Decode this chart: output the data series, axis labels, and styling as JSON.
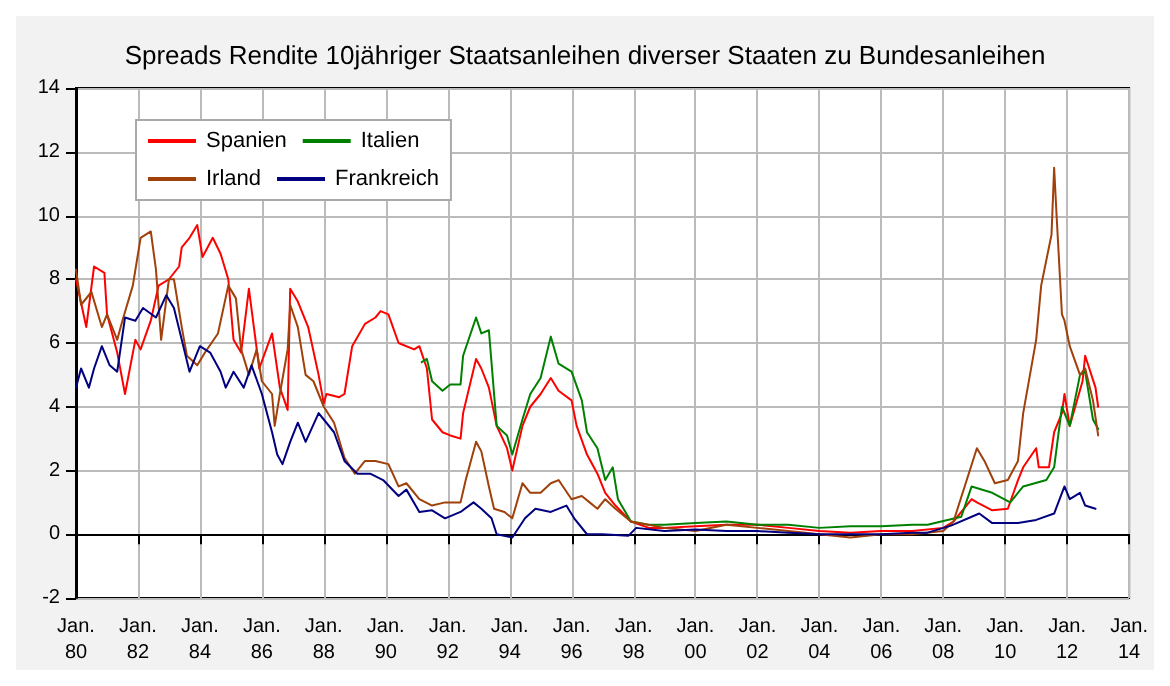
{
  "chart_data": {
    "type": "line",
    "title": "Spreads Rendite 10jähriger Staatsanleihen diverser Staaten zu Bundesanleihen",
    "xlim": [
      "1980-01",
      "2014-01"
    ],
    "ylim": [
      -2,
      14
    ],
    "xticks": [
      {
        "value": "1980-01",
        "label": "Jan.\n80"
      },
      {
        "value": "1982-01",
        "label": "Jan.\n82"
      },
      {
        "value": "1984-01",
        "label": "Jan.\n84"
      },
      {
        "value": "1986-01",
        "label": "Jan.\n86"
      },
      {
        "value": "1988-01",
        "label": "Jan.\n88"
      },
      {
        "value": "1990-01",
        "label": "Jan.\n90"
      },
      {
        "value": "1992-01",
        "label": "Jan.\n92"
      },
      {
        "value": "1994-01",
        "label": "Jan.\n94"
      },
      {
        "value": "1996-01",
        "label": "Jan.\n96"
      },
      {
        "value": "1998-01",
        "label": "Jan.\n98"
      },
      {
        "value": "2000-01",
        "label": "Jan.\n00"
      },
      {
        "value": "2002-01",
        "label": "Jan.\n02"
      },
      {
        "value": "2004-01",
        "label": "Jan.\n04"
      },
      {
        "value": "2006-01",
        "label": "Jan.\n06"
      },
      {
        "value": "2008-01",
        "label": "Jan.\n08"
      },
      {
        "value": "2010-01",
        "label": "Jan.\n10"
      },
      {
        "value": "2012-01",
        "label": "Jan.\n12"
      },
      {
        "value": "2014-01",
        "label": "Jan.\n14"
      }
    ],
    "yticks": [
      -2,
      0,
      2,
      4,
      6,
      8,
      10,
      12,
      14
    ],
    "grid": true,
    "legend": "top left",
    "marker": "none",
    "line_style": "solid",
    "series": [
      {
        "name": "Spanien",
        "color": "#ff0000",
        "x": [
          "1980-01",
          "1980-05",
          "1980-08",
          "1980-12",
          "1981-01",
          "1981-05",
          "1981-08",
          "1981-12",
          "1982-02",
          "1982-06",
          "1982-09",
          "1983-01",
          "1983-05",
          "1983-06",
          "1983-09",
          "1983-12",
          "1984-02",
          "1984-06",
          "1984-09",
          "1984-12",
          "1985-02",
          "1985-05",
          "1985-08",
          "1985-12",
          "1986-05",
          "1986-08",
          "1986-11",
          "1986-12",
          "1987-03",
          "1987-07",
          "1987-11",
          "1988-01",
          "1988-02",
          "1988-07",
          "1988-09",
          "1988-12",
          "1989-05",
          "1989-09",
          "1989-11",
          "1990-02",
          "1990-06",
          "1990-12",
          "1991-02",
          "1991-05",
          "1991-07",
          "1991-11",
          "1992-02",
          "1992-06",
          "1992-07",
          "1992-12",
          "1993-02",
          "1993-05",
          "1993-08",
          "1993-12",
          "1994-02",
          "1994-06",
          "1994-09",
          "1995-01",
          "1995-05",
          "1995-08",
          "1996-01",
          "1996-03",
          "1996-07",
          "1996-11",
          "1997-02",
          "1997-06",
          "1997-12",
          "1998-07",
          "1999-01",
          "2000-01",
          "2001-01",
          "2002-01",
          "2003-01",
          "2004-01",
          "2005-01",
          "2006-01",
          "2007-01",
          "2008-01",
          "2008-05",
          "2008-12",
          "2009-02",
          "2009-08",
          "2010-02",
          "2010-06",
          "2010-08",
          "2011-01",
          "2011-02",
          "2011-06",
          "2011-08",
          "2011-11",
          "2011-12",
          "2012-02",
          "2012-07",
          "2012-08",
          "2012-12",
          "2013-01"
        ],
        "values": [
          8.0,
          6.5,
          8.4,
          8.2,
          6.9,
          5.7,
          4.4,
          6.1,
          5.8,
          6.7,
          7.8,
          8.0,
          8.4,
          9.0,
          9.3,
          9.7,
          8.7,
          9.3,
          8.8,
          8.0,
          6.1,
          5.7,
          7.7,
          5.2,
          6.3,
          4.6,
          3.9,
          7.7,
          7.3,
          6.5,
          5.0,
          4.1,
          4.4,
          4.3,
          4.4,
          5.9,
          6.6,
          6.8,
          7.0,
          6.9,
          6.0,
          5.8,
          5.9,
          5.2,
          3.6,
          3.2,
          3.1,
          3.0,
          3.8,
          5.5,
          5.2,
          4.6,
          3.4,
          2.7,
          2.0,
          3.4,
          4.0,
          4.4,
          4.9,
          4.5,
          4.2,
          3.4,
          2.5,
          1.9,
          1.3,
          0.9,
          0.4,
          0.2,
          0.2,
          0.25,
          0.3,
          0.3,
          0.2,
          0.1,
          0.05,
          0.1,
          0.1,
          0.2,
          0.4,
          1.1,
          1.0,
          0.75,
          0.8,
          1.7,
          2.1,
          2.7,
          2.1,
          2.1,
          3.2,
          3.8,
          4.4,
          3.4,
          4.8,
          5.6,
          4.6,
          4.0
        ]
      },
      {
        "name": "Italien",
        "color": "#008000",
        "x": [
          "1991-03",
          "1991-05",
          "1991-07",
          "1991-11",
          "1992-02",
          "1992-06",
          "1992-07",
          "1992-12",
          "1993-02",
          "1993-05",
          "1993-08",
          "1993-12",
          "1994-02",
          "1994-06",
          "1994-09",
          "1995-01",
          "1995-05",
          "1995-08",
          "1996-01",
          "1996-05",
          "1996-07",
          "1996-11",
          "1997-02",
          "1997-05",
          "1997-07",
          "1997-12",
          "1998-07",
          "1999-01",
          "2000-01",
          "2001-01",
          "2002-01",
          "2003-01",
          "2004-01",
          "2005-01",
          "2006-01",
          "2007-01",
          "2007-07",
          "2008-08",
          "2008-12",
          "2009-08",
          "2010-03",
          "2010-08",
          "2011-05",
          "2011-08",
          "2011-11",
          "2012-02",
          "2012-06",
          "2012-08",
          "2012-11",
          "2013-01"
        ],
        "values": [
          5.4,
          5.5,
          4.8,
          4.5,
          4.7,
          4.7,
          5.6,
          6.8,
          6.3,
          6.4,
          3.4,
          3.1,
          2.5,
          3.6,
          4.4,
          4.9,
          6.2,
          5.35,
          5.1,
          4.2,
          3.2,
          2.7,
          1.7,
          2.1,
          1.1,
          0.4,
          0.3,
          0.3,
          0.35,
          0.4,
          0.3,
          0.3,
          0.2,
          0.25,
          0.25,
          0.3,
          0.3,
          0.55,
          1.5,
          1.3,
          1.0,
          1.5,
          1.7,
          2.1,
          4.0,
          3.4,
          5.0,
          5.1,
          3.6,
          3.3
        ]
      },
      {
        "name": "Irland",
        "color": "#a0400a",
        "x": [
          "1980-01",
          "1980-03",
          "1980-07",
          "1980-11",
          "1981-01",
          "1981-05",
          "1981-07",
          "1981-11",
          "1982-02",
          "1982-06",
          "1982-08",
          "1982-10",
          "1983-01",
          "1983-03",
          "1983-06",
          "1983-08",
          "1983-12",
          "1984-03",
          "1984-08",
          "1984-12",
          "1985-03",
          "1985-05",
          "1985-08",
          "1985-11",
          "1986-01",
          "1986-05",
          "1986-06",
          "1986-08",
          "1986-11",
          "1986-12",
          "1987-03",
          "1987-06",
          "1987-09",
          "1988-01",
          "1988-05",
          "1988-09",
          "1989-01",
          "1989-05",
          "1989-09",
          "1990-02",
          "1990-06",
          "1990-09",
          "1991-02",
          "1991-07",
          "1991-12",
          "1992-06",
          "1992-08",
          "1992-12",
          "1993-02",
          "1993-05",
          "1993-07",
          "1993-11",
          "1994-02",
          "1994-06",
          "1994-09",
          "1995-01",
          "1995-05",
          "1995-08",
          "1996-01",
          "1996-05",
          "1996-08",
          "1996-11",
          "1997-02",
          "1997-06",
          "1997-12",
          "1999-01",
          "2000-01",
          "2001-01",
          "2002-01",
          "2003-01",
          "2004-01",
          "2005-01",
          "2006-01",
          "2007-01",
          "2008-01",
          "2008-05",
          "2009-02",
          "2009-05",
          "2009-09",
          "2010-02",
          "2010-06",
          "2010-08",
          "2011-01",
          "2011-03",
          "2011-07",
          "2011-08",
          "2011-09",
          "2011-11",
          "2011-12",
          "2012-02",
          "2012-06",
          "2012-08",
          "2012-11",
          "2013-01"
        ],
        "values": [
          8.3,
          7.2,
          7.6,
          6.5,
          6.9,
          6.1,
          6.7,
          7.8,
          9.3,
          9.5,
          8.3,
          6.1,
          8.0,
          8.0,
          6.5,
          5.6,
          5.3,
          5.7,
          6.3,
          7.8,
          7.4,
          5.8,
          5.0,
          5.8,
          4.8,
          4.4,
          3.4,
          4.4,
          5.8,
          7.2,
          6.5,
          5.0,
          4.8,
          4.0,
          3.5,
          2.4,
          1.9,
          2.3,
          2.3,
          2.2,
          1.5,
          1.6,
          1.1,
          0.9,
          1.0,
          1.0,
          1.7,
          2.9,
          2.6,
          1.5,
          0.8,
          0.7,
          0.5,
          1.6,
          1.3,
          1.3,
          1.6,
          1.7,
          1.1,
          1.2,
          1.0,
          0.8,
          1.1,
          0.8,
          0.4,
          0.2,
          0.1,
          0.3,
          0.2,
          0.1,
          0.0,
          -0.1,
          0.0,
          0.0,
          0.1,
          0.4,
          2.7,
          2.3,
          1.6,
          1.7,
          2.3,
          3.8,
          6.1,
          7.8,
          9.4,
          11.5,
          9.9,
          6.9,
          6.7,
          5.9,
          5.0,
          5.2,
          4.2,
          3.1
        ]
      },
      {
        "name": "Frankreich",
        "color": "#000080",
        "x": [
          "1980-01",
          "1980-03",
          "1980-06",
          "1980-08",
          "1980-11",
          "1981-02",
          "1981-05",
          "1981-08",
          "1981-12",
          "1982-03",
          "1982-08",
          "1982-12",
          "1983-03",
          "1983-06",
          "1983-09",
          "1984-01",
          "1984-05",
          "1984-09",
          "1984-11",
          "1985-02",
          "1985-06",
          "1985-09",
          "1986-01",
          "1986-05",
          "1986-07",
          "1986-09",
          "1986-12",
          "1987-03",
          "1987-06",
          "1987-11",
          "1988-01",
          "1988-05",
          "1988-09",
          "1989-02",
          "1989-07",
          "1989-12",
          "1990-06",
          "1990-09",
          "1991-02",
          "1991-07",
          "1991-12",
          "1992-06",
          "1992-11",
          "1993-02",
          "1993-06",
          "1993-08",
          "1994-02",
          "1994-07",
          "1994-11",
          "1995-05",
          "1995-11",
          "1996-02",
          "1996-07",
          "1997-01",
          "1997-11",
          "1998-02",
          "1999-01",
          "2000-01",
          "2001-01",
          "2002-01",
          "2003-01",
          "2004-01",
          "2005-01",
          "2006-01",
          "2007-01",
          "2007-07",
          "2008-04",
          "2009-03",
          "2009-08",
          "2010-06",
          "2011-01",
          "2011-08",
          "2011-12",
          "2012-02",
          "2012-06",
          "2012-08",
          "2012-12"
        ],
        "values": [
          4.6,
          5.2,
          4.6,
          5.2,
          5.9,
          5.3,
          5.1,
          6.8,
          6.7,
          7.1,
          6.8,
          7.5,
          7.1,
          6.1,
          5.1,
          5.9,
          5.7,
          5.1,
          4.6,
          5.1,
          4.6,
          5.3,
          4.4,
          3.2,
          2.5,
          2.2,
          2.9,
          3.5,
          2.9,
          3.8,
          3.6,
          3.2,
          2.3,
          1.9,
          1.9,
          1.7,
          1.2,
          1.4,
          0.7,
          0.75,
          0.5,
          0.7,
          1.0,
          0.8,
          0.5,
          0.0,
          -0.1,
          0.5,
          0.8,
          0.7,
          0.9,
          0.5,
          0.0,
          0.0,
          -0.05,
          0.2,
          0.1,
          0.15,
          0.1,
          0.1,
          0.05,
          0.0,
          0.0,
          0.0,
          0.05,
          0.05,
          0.27,
          0.65,
          0.35,
          0.35,
          0.45,
          0.65,
          1.5,
          1.1,
          1.3,
          0.9,
          0.8
        ]
      }
    ]
  }
}
